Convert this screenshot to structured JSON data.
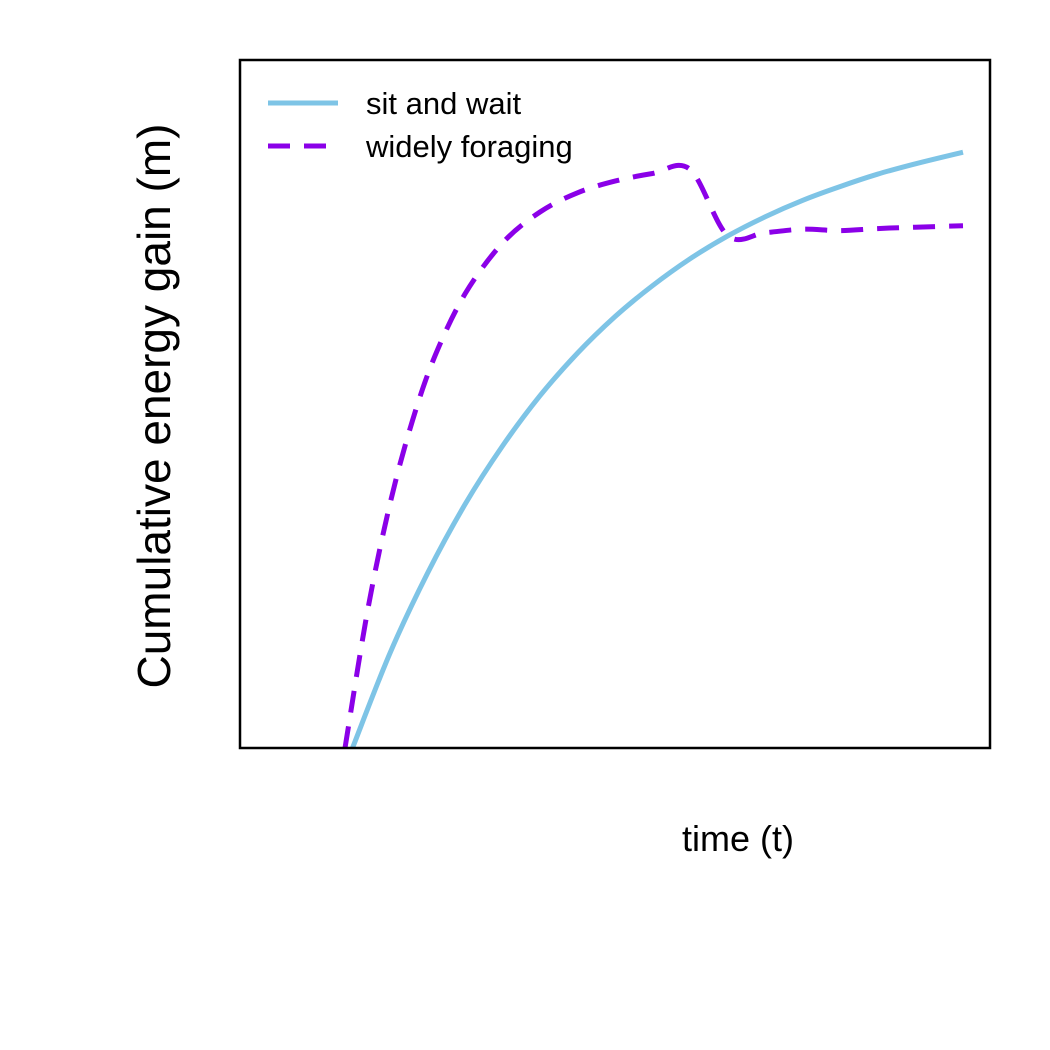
{
  "chart_data": {
    "type": "line",
    "title": "",
    "xlabel": "time (t)",
    "ylabel": "Cumulative energy gain (m)",
    "xlim": [
      0,
      1
    ],
    "ylim": [
      0,
      1
    ],
    "axis_ticks": false,
    "grid": false,
    "legend": {
      "position": "top-left",
      "entries": [
        "sit and wait",
        "widely foraging"
      ]
    },
    "series": [
      {
        "name": "sit and wait",
        "color": "#7EC4E6",
        "line_style": "solid",
        "x": [
          0.15,
          0.2,
          0.25,
          0.3,
          0.35,
          0.4,
          0.45,
          0.5,
          0.55,
          0.6,
          0.65,
          0.7,
          0.75,
          0.8,
          0.85,
          0.9,
          0.964
        ],
        "y": [
          0.0,
          0.138,
          0.254,
          0.354,
          0.439,
          0.512,
          0.574,
          0.627,
          0.672,
          0.711,
          0.744,
          0.772,
          0.796,
          0.816,
          0.834,
          0.849,
          0.866
        ]
      },
      {
        "name": "widely foraging",
        "color": "#8B00E8",
        "line_style": "dashed",
        "x": [
          0.14,
          0.17,
          0.2,
          0.23,
          0.26,
          0.3,
          0.35,
          0.4,
          0.45,
          0.5,
          0.55,
          0.6,
          0.65,
          0.7,
          0.75,
          0.8,
          0.85,
          0.9,
          0.964
        ],
        "y": [
          0.0,
          0.199,
          0.355,
          0.476,
          0.57,
          0.66,
          0.734,
          0.779,
          0.807,
          0.824,
          0.835,
          0.841,
          0.745,
          0.749,
          0.754,
          0.752,
          0.755,
          0.757,
          0.759
        ]
      }
    ]
  }
}
